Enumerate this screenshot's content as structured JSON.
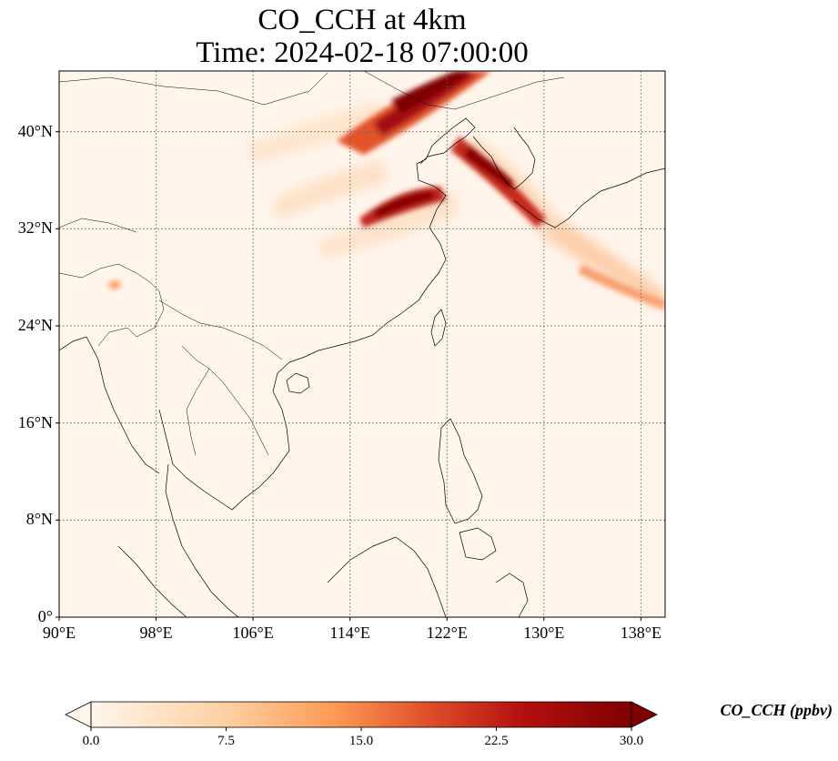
{
  "title": {
    "line1": "CO_CCH at 4km",
    "line2": "Time: 2024-02-18 07:00:00"
  },
  "map": {
    "lon_range": [
      90,
      140
    ],
    "lat_range": [
      0,
      45
    ],
    "lat_ticks": [
      {
        "value": 40,
        "label": "40°N"
      },
      {
        "value": 32,
        "label": "32°N"
      },
      {
        "value": 24,
        "label": "24°N"
      },
      {
        "value": 16,
        "label": "16°N"
      },
      {
        "value": 8,
        "label": "8°N"
      },
      {
        "value": 0,
        "label": "0°"
      }
    ],
    "lon_ticks": [
      {
        "value": 90,
        "label": "90°E"
      },
      {
        "value": 98,
        "label": "98°E"
      },
      {
        "value": 106,
        "label": "106°E"
      },
      {
        "value": 114,
        "label": "114°E"
      },
      {
        "value": 122,
        "label": "122°E"
      },
      {
        "value": 130,
        "label": "130°E"
      },
      {
        "value": 138,
        "label": "138°E"
      }
    ],
    "gridlines": "dotted"
  },
  "colorbar": {
    "label": "CO_CCH (ppbv)",
    "range": [
      0,
      30
    ],
    "extend": "both",
    "colormap": [
      "#fff5eb",
      "#fdd0a2",
      "#fd8d3c",
      "#d94801",
      "#a50f15",
      "#7f0000"
    ],
    "ticks": [
      {
        "value": 0,
        "label": "0.0"
      },
      {
        "value": 7.5,
        "label": "7.5"
      },
      {
        "value": 15,
        "label": "15.0"
      },
      {
        "value": 22.5,
        "label": "22.5"
      },
      {
        "value": 30,
        "label": "30.0"
      }
    ]
  }
}
